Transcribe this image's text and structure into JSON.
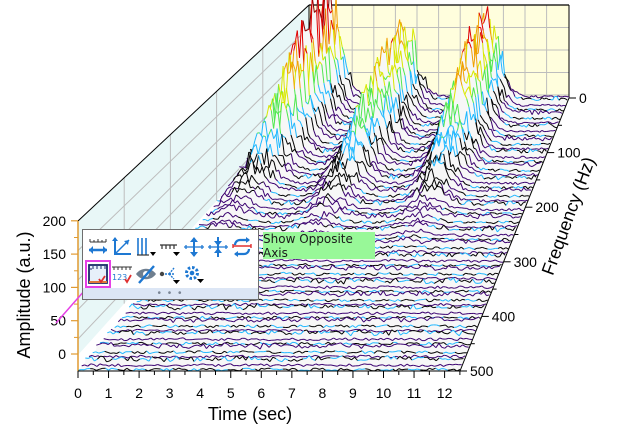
{
  "chart_data": {
    "type": "waterfall",
    "title": "",
    "x_axis": {
      "label": "Time (sec)",
      "ticks": [
        "0",
        "1",
        "2",
        "3",
        "4",
        "5",
        "6",
        "7",
        "8",
        "9",
        "10",
        "11",
        "12"
      ],
      "range": [
        0,
        12.5
      ]
    },
    "y_axis": {
      "label": "Frequency (Hz)",
      "ticks": [
        "0",
        "100",
        "200",
        "300",
        "400",
        "500"
      ],
      "range": [
        0,
        500
      ]
    },
    "z_axis": {
      "label": "Amplitude (a.u.)",
      "ticks": [
        "0",
        "50",
        "100",
        "150",
        "200"
      ],
      "range": [
        0,
        200
      ]
    },
    "series_count": 64,
    "peak_clusters": [
      {
        "time": 0.2,
        "freq_center": 20,
        "max_amplitude": 200
      },
      {
        "time": 3.9,
        "freq_center": 40,
        "max_amplitude": 145
      },
      {
        "time": 7.8,
        "freq_center": 30,
        "max_amplitude": 170
      }
    ],
    "colormap": [
      "#3a0070",
      "#000000",
      "#1fb8ff",
      "#50e850",
      "#d8e800",
      "#f0a000",
      "#e00000",
      "#8a0000"
    ],
    "colors": {
      "back_wall": "#fffedd",
      "side_wall": "#e8f7f7",
      "floor": "#f7f7f7",
      "z_axis_line": "#e09a30",
      "grid": "#bdbdbd"
    }
  },
  "toolbar": {
    "row1": [
      {
        "name": "axis-length-icon",
        "tip": ""
      },
      {
        "name": "axis-xyz-icon",
        "tip": ""
      },
      {
        "name": "grid-lines-icon",
        "tip": ""
      },
      {
        "name": "tick-marks-icon",
        "tip": ""
      },
      {
        "name": "axis-offset-out-icon",
        "tip": ""
      },
      {
        "name": "axis-offset-in-icon",
        "tip": ""
      },
      {
        "name": "swap-axis-icon",
        "tip": ""
      }
    ],
    "row2": [
      {
        "name": "show-opposite-axis-icon",
        "selected": true
      },
      {
        "name": "tick-labels-icon"
      },
      {
        "name": "hide-axis-icon"
      },
      {
        "name": "axis-position-icon"
      },
      {
        "name": "axis-settings-icon"
      }
    ],
    "more": "• • •"
  },
  "tooltip": {
    "text": "Show Opposite Axis"
  }
}
